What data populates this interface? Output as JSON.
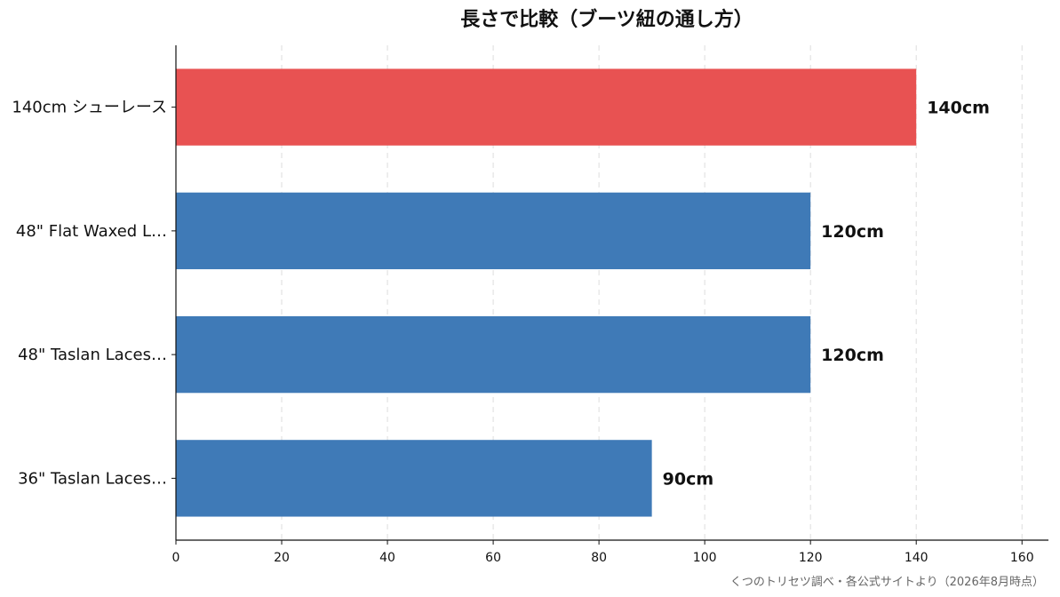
{
  "chart_data": {
    "type": "bar",
    "orientation": "horizontal",
    "title": "長さで比較（ブーツ紐の通し方）",
    "xlabel": "",
    "ylabel": "",
    "categories": [
      "140cm シューレース",
      "48\" Flat Waxed L…",
      "48\" Taslan Laces…",
      "36\" Taslan Laces…"
    ],
    "values": [
      140,
      120,
      120,
      90
    ],
    "value_labels": [
      "140cm",
      "120cm",
      "120cm",
      "90cm"
    ],
    "bar_colors": [
      "#e85252",
      "#3f7ab7",
      "#3f7ab7",
      "#3f7ab7"
    ],
    "xlim": [
      0,
      165
    ],
    "xticks": [
      0,
      20,
      40,
      60,
      80,
      100,
      120,
      140,
      160
    ],
    "grid": "x-dashed",
    "legend": "none"
  },
  "source_note": "くつのトリセツ調べ・各公式サイトより（2026年8月時点）"
}
